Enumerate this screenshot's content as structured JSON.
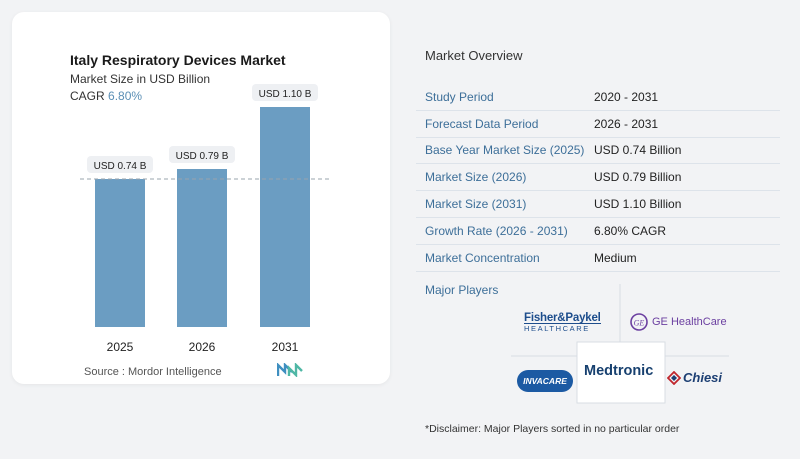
{
  "chart_data": {
    "type": "bar",
    "title": "Italy Respiratory Devices Market",
    "subtitle": "Market Size in USD Billion",
    "cagr_label": "CAGR",
    "cagr_value": "6.80%",
    "categories": [
      "2025",
      "2026",
      "2031"
    ],
    "values": [
      0.74,
      0.79,
      1.1
    ],
    "data_labels": [
      "USD 0.74 B",
      "USD 0.79 B",
      "USD 1.10 B"
    ],
    "ylim": [
      0,
      1.2
    ],
    "bar_color": "#6b9dc2",
    "reference_line": 0.74
  },
  "source": "Source :  Mordor Intelligence",
  "overview": {
    "title": "Market Overview",
    "rows": [
      {
        "key": "Study Period",
        "value": "2020 - 2031"
      },
      {
        "key": "Forecast Data Period",
        "value": "2026 - 2031"
      },
      {
        "key": "Base Year Market Size (2025)",
        "value": "USD 0.74 Billion"
      },
      {
        "key": "Market Size (2026)",
        "value": "USD 0.79 Billion"
      },
      {
        "key": "Market Size (2031)",
        "value": "USD 1.10 Billion"
      },
      {
        "key": "Growth Rate (2026 - 2031)",
        "value": "6.80% CAGR"
      },
      {
        "key": "Market Concentration",
        "value": "Medium"
      }
    ]
  },
  "players": {
    "title": "Major Players",
    "logos": {
      "fisher_top": "Fisher&Paykel",
      "fisher_bottom": "HEALTHCARE",
      "ge": "GE HealthCare",
      "invacare": "INVACARE",
      "medtronic": "Medtronic",
      "chiesi": "Chiesi"
    }
  },
  "disclaimer": "*Disclaimer: Major Players sorted in no particular order"
}
